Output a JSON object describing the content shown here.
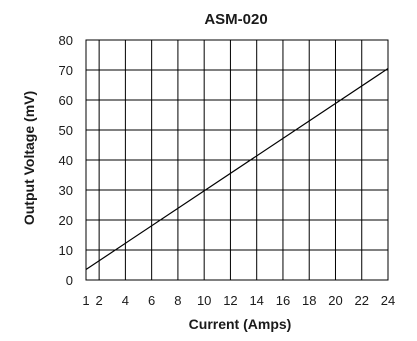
{
  "chart_data": {
    "type": "line",
    "title": "ASM-020",
    "xlabel": "Current  (Amps)",
    "ylabel": "Output Voltage  (mV)",
    "xlim": [
      1,
      24
    ],
    "ylim": [
      0,
      80
    ],
    "x_ticks": [
      1,
      2,
      4,
      6,
      8,
      10,
      12,
      14,
      16,
      18,
      20,
      22,
      24
    ],
    "y_ticks": [
      0,
      10,
      20,
      30,
      40,
      50,
      60,
      70,
      80
    ],
    "grid": true,
    "legend": "none",
    "series": [
      {
        "x": [
          1,
          24
        ],
        "y": [
          3.5,
          70.5
        ],
        "color": "#000000"
      }
    ]
  }
}
